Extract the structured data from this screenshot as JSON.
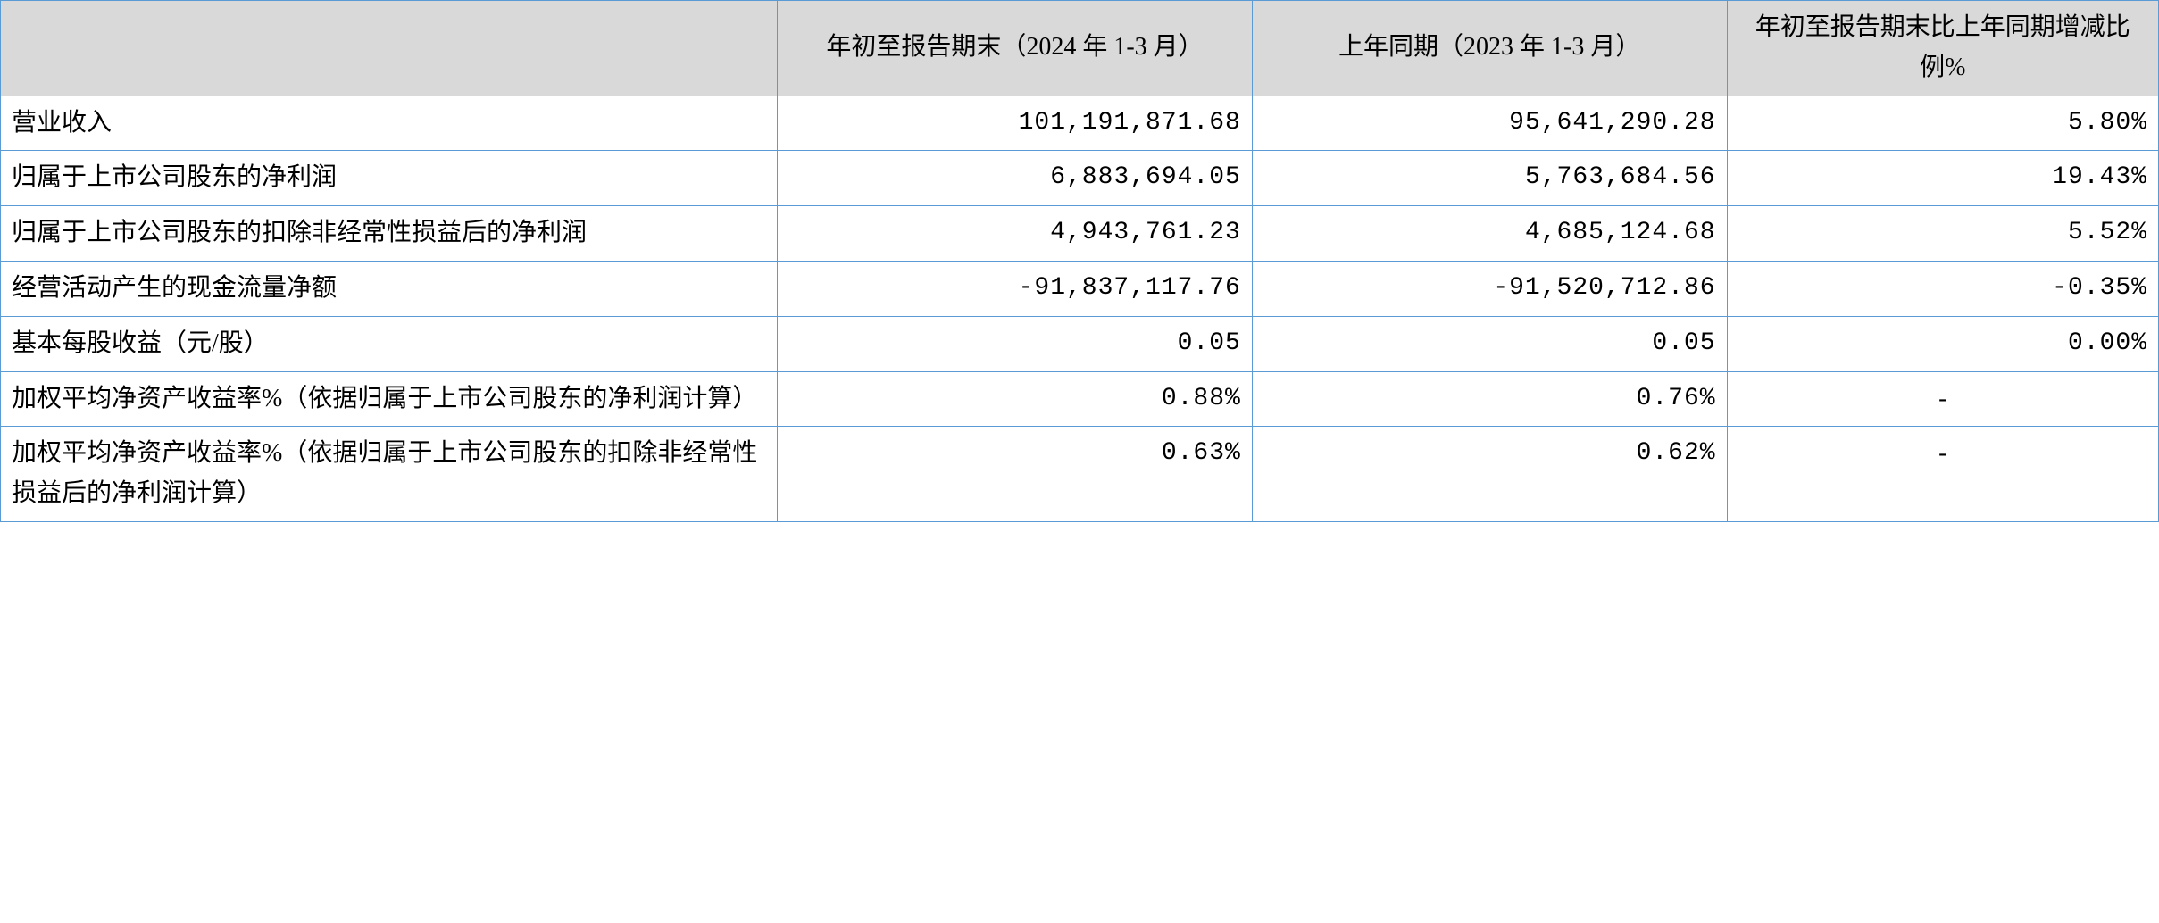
{
  "table": {
    "type": "table",
    "border_color": "#5b9bd5",
    "header_bg": "#d9d9d9",
    "background_color": "#ffffff",
    "font_family": "SimSun",
    "font_size_pt": 21,
    "columns": [
      {
        "key": "label",
        "header": "",
        "width_pct": 36,
        "align": "left"
      },
      {
        "key": "current",
        "header": "年初至报告期末（2024 年 1-3 月）",
        "width_pct": 22,
        "align": "right"
      },
      {
        "key": "prior",
        "header": "上年同期（2023 年 1-3 月）",
        "width_pct": 22,
        "align": "right"
      },
      {
        "key": "change",
        "header": "年初至报告期末比上年同期增减比例%",
        "width_pct": 20,
        "align": "right"
      }
    ],
    "rows": [
      {
        "label": "营业收入",
        "current": "101,191,871.68",
        "prior": "95,641,290.28",
        "change": "5.80%",
        "change_align": "right"
      },
      {
        "label": "归属于上市公司股东的净利润",
        "current": "6,883,694.05",
        "prior": "5,763,684.56",
        "change": "19.43%",
        "change_align": "right"
      },
      {
        "label": "归属于上市公司股东的扣除非经常性损益后的净利润",
        "current": "4,943,761.23",
        "prior": "4,685,124.68",
        "change": "5.52%",
        "change_align": "right"
      },
      {
        "label": "经营活动产生的现金流量净额",
        "current": "-91,837,117.76",
        "prior": "-91,520,712.86",
        "change": "-0.35%",
        "change_align": "right"
      },
      {
        "label": "基本每股收益（元/股）",
        "current": "0.05",
        "prior": "0.05",
        "change": "0.00%",
        "change_align": "right"
      },
      {
        "label": "加权平均净资产收益率%（依据归属于上市公司股东的净利润计算）",
        "current": "0.88%",
        "prior": "0.76%",
        "change": "-",
        "change_align": "center"
      },
      {
        "label": "加权平均净资产收益率%（依据归属于上市公司股东的扣除非经常性损益后的净利润计算）",
        "current": "0.63%",
        "prior": "0.62%",
        "change": "-",
        "change_align": "center"
      }
    ]
  }
}
